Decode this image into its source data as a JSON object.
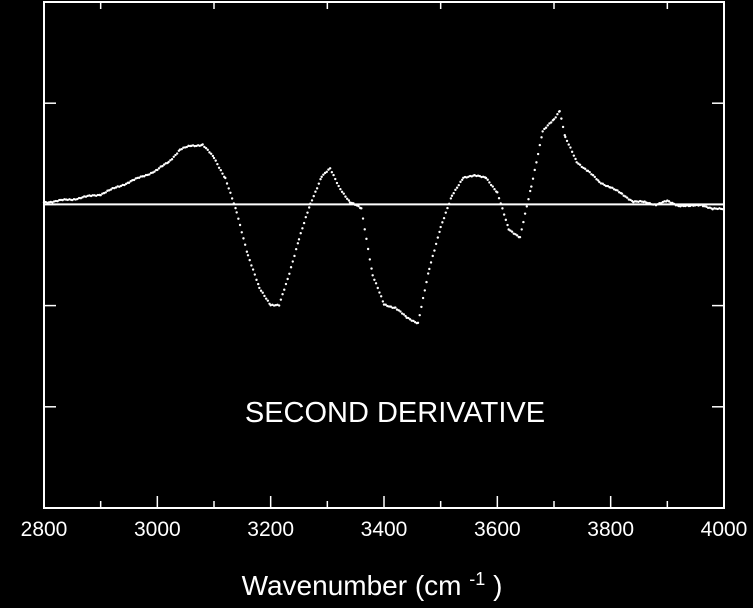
{
  "chart_data": {
    "type": "scatter",
    "title": "",
    "annotation": "SECOND DERIVATIVE",
    "xlabel": {
      "prefix": "Wavenumber (cm",
      "superscript": "-1",
      "suffix": ")"
    },
    "ylabel": "",
    "xlim": [
      2800,
      4000
    ],
    "ylim": [
      -3,
      2
    ],
    "x_ticks": [
      2800,
      3000,
      3200,
      3400,
      3600,
      3800,
      4000
    ],
    "x_tick_labels": [
      "2800",
      "3000",
      "3200",
      "3400",
      "3600",
      "3800",
      "4000"
    ],
    "baseline": 0,
    "grid": false,
    "colors": {
      "background": "#000000",
      "foreground": "#ffffff",
      "series": "#ffffff"
    },
    "series": [
      {
        "points": [
          [
            2800,
            0.02
          ],
          [
            2850,
            0.05
          ],
          [
            2900,
            0.1
          ],
          [
            2950,
            0.22
          ],
          [
            2980,
            0.29
          ],
          [
            3000,
            0.34
          ],
          [
            3020,
            0.42
          ],
          [
            3040,
            0.54
          ],
          [
            3060,
            0.58
          ],
          [
            3080,
            0.59
          ],
          [
            3100,
            0.46
          ],
          [
            3120,
            0.26
          ],
          [
            3140,
            -0.08
          ],
          [
            3160,
            -0.5
          ],
          [
            3180,
            -0.83
          ],
          [
            3200,
            -0.99
          ],
          [
            3215,
            -1.0
          ],
          [
            3230,
            -0.74
          ],
          [
            3250,
            -0.34
          ],
          [
            3270,
            0.0
          ],
          [
            3290,
            0.28
          ],
          [
            3305,
            0.35
          ],
          [
            3320,
            0.18
          ],
          [
            3340,
            0.02
          ],
          [
            3360,
            -0.04
          ],
          [
            3380,
            -0.7
          ],
          [
            3400,
            -0.99
          ],
          [
            3420,
            -1.02
          ],
          [
            3440,
            -1.12
          ],
          [
            3460,
            -1.17
          ],
          [
            3480,
            -0.64
          ],
          [
            3500,
            -0.22
          ],
          [
            3520,
            0.08
          ],
          [
            3540,
            0.27
          ],
          [
            3560,
            0.28
          ],
          [
            3580,
            0.27
          ],
          [
            3600,
            0.11
          ],
          [
            3620,
            -0.24
          ],
          [
            3640,
            -0.33
          ],
          [
            3660,
            0.18
          ],
          [
            3680,
            0.72
          ],
          [
            3700,
            0.84
          ],
          [
            3710,
            0.93
          ],
          [
            3720,
            0.66
          ],
          [
            3740,
            0.42
          ],
          [
            3760,
            0.33
          ],
          [
            3780,
            0.22
          ],
          [
            3800,
            0.17
          ],
          [
            3820,
            0.1
          ],
          [
            3840,
            0.03
          ],
          [
            3860,
            0.02
          ],
          [
            3880,
            0.0
          ],
          [
            3900,
            0.03
          ],
          [
            3920,
            -0.01
          ],
          [
            3940,
            -0.02
          ],
          [
            3960,
            0.0
          ],
          [
            3980,
            -0.05
          ],
          [
            4000,
            -0.04
          ]
        ]
      }
    ]
  }
}
